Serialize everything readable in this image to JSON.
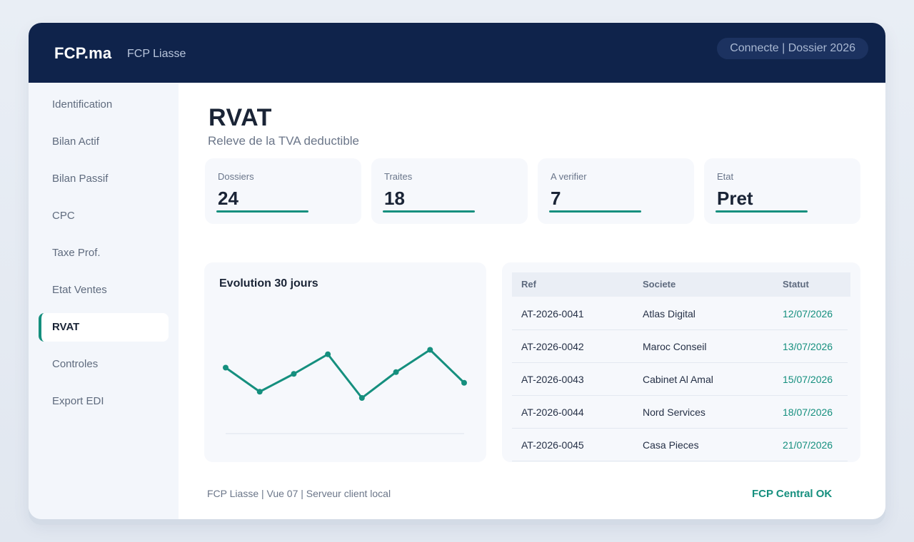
{
  "header": {
    "brand": "FCP.ma",
    "subbrand": "FCP Liasse",
    "status": "Connecte | Dossier 2026"
  },
  "sidebar": {
    "items": [
      {
        "label": "Identification",
        "active": false
      },
      {
        "label": "Bilan Actif",
        "active": false
      },
      {
        "label": "Bilan Passif",
        "active": false
      },
      {
        "label": "CPC",
        "active": false
      },
      {
        "label": "Taxe Prof.",
        "active": false
      },
      {
        "label": "Etat Ventes",
        "active": false
      },
      {
        "label": "RVAT",
        "active": true
      },
      {
        "label": "Controles",
        "active": false
      },
      {
        "label": "Export EDI",
        "active": false
      }
    ]
  },
  "page": {
    "title": "RVAT",
    "subtitle": "Releve de la TVA deductible"
  },
  "kpis": [
    {
      "label": "Dossiers",
      "value": "24"
    },
    {
      "label": "Traites",
      "value": "18"
    },
    {
      "label": "A verifier",
      "value": "7"
    },
    {
      "label": "Etat",
      "value": "Pret"
    }
  ],
  "chart": {
    "title": "Evolution 30 jours"
  },
  "chart_data": {
    "type": "line",
    "title": "Evolution 30 jours",
    "x": [
      1,
      2,
      3,
      4,
      5,
      6,
      7,
      8
    ],
    "series": [
      {
        "values": [
          62,
          35,
          55,
          77,
          28,
          57,
          82,
          45
        ]
      }
    ],
    "ylim": [
      0,
      100
    ],
    "grid": false,
    "color": "#158f7e"
  },
  "table": {
    "columns": [
      "Ref",
      "Societe",
      "Statut"
    ],
    "rows": [
      [
        "AT-2026-0041",
        "Atlas Digital",
        "12/07/2026"
      ],
      [
        "AT-2026-0042",
        "Maroc Conseil",
        "13/07/2026"
      ],
      [
        "AT-2026-0043",
        "Cabinet Al Amal",
        "15/07/2026"
      ],
      [
        "AT-2026-0044",
        "Nord Services",
        "18/07/2026"
      ],
      [
        "AT-2026-0045",
        "Casa Pieces",
        "21/07/2026"
      ]
    ]
  },
  "footer": {
    "left": "FCP Liasse | Vue 07 | Serveur client local",
    "right": "FCP Central OK"
  },
  "colors": {
    "header_bg": "#0f234b",
    "accent": "#158f7e",
    "sidebar_bg": "#f3f6fb"
  }
}
